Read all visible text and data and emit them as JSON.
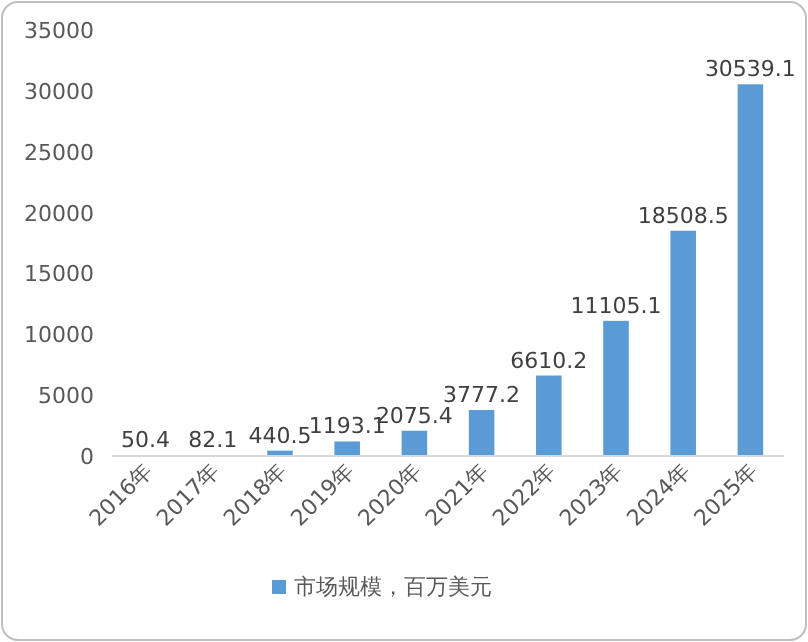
{
  "chart_data": {
    "type": "bar",
    "categories": [
      "2016年",
      "2017年",
      "2018年",
      "2019年",
      "2020年",
      "2021年",
      "2022年",
      "2023年",
      "2024年",
      "2025年"
    ],
    "series": [
      {
        "name": "市场规模，百万美元",
        "color": "#5b9bd5",
        "values": [
          50.4,
          82.1,
          440.5,
          1193.1,
          2075.4,
          3777.2,
          6610.2,
          11105.1,
          18508.5,
          30539.1
        ]
      }
    ],
    "ylim": [
      0,
      35000
    ],
    "yticks": [
      0,
      5000,
      10000,
      15000,
      20000,
      25000,
      30000,
      35000
    ],
    "data_labels": true,
    "legend": "bottom",
    "grid": false
  }
}
